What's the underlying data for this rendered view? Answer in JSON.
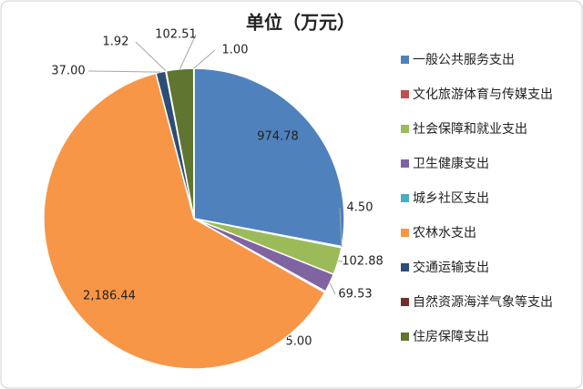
{
  "chart_data": {
    "type": "pie",
    "title": "单位（万元）",
    "categories": [
      "一般公共服务支出",
      "文化旅游体育与传媒支出",
      "社会保障和就业支出",
      "卫生健康支出",
      "城乡社区支出",
      "农林水支出",
      "交通运输支出",
      "自然资源海洋气象等支出",
      "住房保障支出",
      null
    ],
    "values": [
      974.78,
      4.5,
      102.88,
      69.53,
      5,
      2186.44,
      37,
      1.92,
      102.51,
      1
    ],
    "value_labels": [
      "974.78",
      "4.50",
      "102.88",
      "69.53",
      "5.00",
      "2,186.44",
      "37.00",
      "1.92",
      "102.51",
      "1.00"
    ],
    "colors": [
      "#4f81bd",
      "#c0504d",
      "#9bbb59",
      "#8064a2",
      "#4bacc6",
      "#f79646",
      "#2c4d75",
      "#772c2a",
      "#5f7530",
      "#3a6aa0"
    ],
    "legend": "right"
  }
}
